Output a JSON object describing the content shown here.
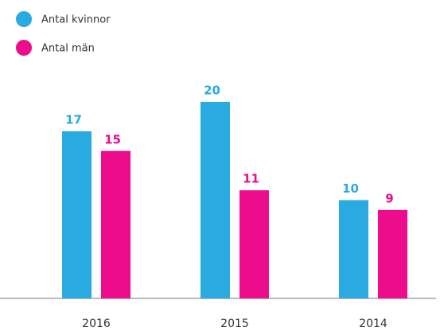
{
  "chart_data": {
    "type": "bar",
    "categories": [
      "2016",
      "2015",
      "2014"
    ],
    "series": [
      {
        "name": "Antal kvinnor",
        "color": "#29abe2",
        "values": [
          17,
          20,
          10
        ]
      },
      {
        "name": "Antal män",
        "color": "#ec0c8c",
        "values": [
          15,
          11,
          9
        ]
      }
    ]
  }
}
